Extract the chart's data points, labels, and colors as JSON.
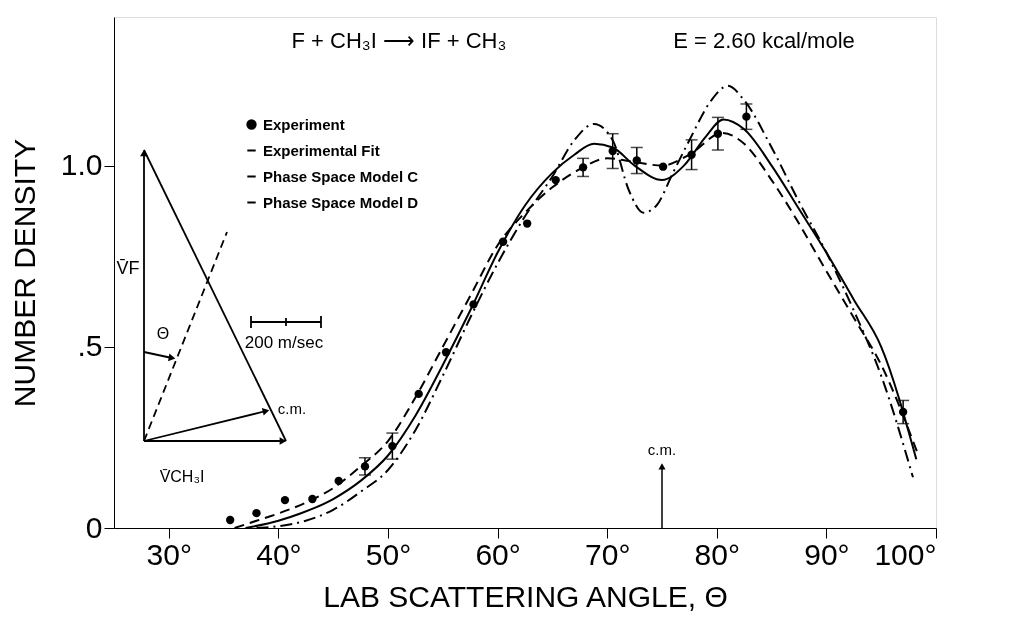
{
  "chart_data": {
    "type": "line",
    "xlabel": "LAB SCATTERING ANGLE, Θ",
    "ylabel": "NUMBER DENSITY",
    "xlim": [
      25,
      100
    ],
    "ylim": [
      0,
      1.41
    ],
    "xticks": [
      {
        "value": 30,
        "label": "30°"
      },
      {
        "value": 40,
        "label": "40°"
      },
      {
        "value": 50,
        "label": "50°"
      },
      {
        "value": 60,
        "label": "60°"
      },
      {
        "value": 70,
        "label": "70°"
      },
      {
        "value": 80,
        "label": "80°"
      },
      {
        "value": 90,
        "label": "90°"
      },
      {
        "value": 100,
        "label": "100°"
      }
    ],
    "yticks": [
      0,
      {
        "value": 0.5,
        "label": ".5"
      },
      {
        "value": 1.0,
        "label": "1.0"
      }
    ],
    "grid": false,
    "legend": "top left",
    "annotations": [
      "F + CH₃I ⟶ IF + CH₃",
      "E = 2.60 kcal/mole",
      "V̄F",
      "Θ",
      "200 m/sec",
      "c.m.",
      "V̄CH₃I",
      {
        "text": "c.m.",
        "x": 75,
        "y": 0.17
      }
    ],
    "series": [
      {
        "name": "Experiment",
        "type": "scatter",
        "color": "#000000",
        "marker": "circle",
        "x": [
          35.6,
          38.0,
          40.6,
          43.1,
          45.5,
          47.9,
          50.4,
          52.8,
          55.3,
          57.8,
          60.5,
          62.7,
          65.3,
          67.8,
          70.5,
          72.7,
          75.1,
          77.7,
          80.1,
          82.7,
          97.0
        ],
        "values": [
          0.022,
          0.041,
          0.077,
          0.08,
          0.13,
          0.17,
          0.226,
          0.37,
          0.485,
          0.617,
          0.79,
          0.84,
          0.96,
          0.995,
          1.04,
          1.014,
          0.997,
          1.03,
          1.088,
          1.135,
          0.32
        ],
        "errors": [
          null,
          null,
          null,
          null,
          null,
          0.024,
          0.036,
          null,
          null,
          null,
          null,
          null,
          null,
          0.025,
          0.048,
          0.036,
          null,
          0.041,
          0.045,
          0.035,
          0.032
        ]
      },
      {
        "name": "Experimental Fit",
        "color": "#000000",
        "line_style": "solid",
        "x": [
          37,
          40,
          42,
          45,
          47.5,
          50,
          52.5,
          55,
          57.5,
          60,
          62.5,
          65,
          67,
          68.8,
          70.5,
          72.5,
          75,
          77,
          79,
          80.6,
          82.5,
          85,
          87.5,
          90,
          92.5,
          95,
          98.2
        ],
        "values": [
          0,
          0.02,
          0.04,
          0.08,
          0.13,
          0.2,
          0.31,
          0.45,
          0.6,
          0.76,
          0.89,
          0.98,
          1.03,
          1.06,
          1.05,
          1.0,
          0.96,
          1.0,
          1.08,
          1.127,
          1.1,
          1.0,
          0.88,
          0.76,
          0.63,
          0.5,
          0.19
        ]
      },
      {
        "name": "Phase Space Model C",
        "color": "#000000",
        "line_style": "dashed",
        "x": [
          36,
          38,
          40,
          42.5,
          45,
          47.5,
          50,
          52.5,
          55,
          57.5,
          60,
          62.5,
          65,
          67.5,
          70,
          72.5,
          75,
          77.5,
          80.5,
          82.5,
          85,
          87.5,
          89.4,
          92.5,
          95,
          98.4
        ],
        "values": [
          0,
          0.02,
          0.04,
          0.07,
          0.11,
          0.17,
          0.24,
          0.36,
          0.5,
          0.64,
          0.78,
          0.87,
          0.94,
          0.99,
          1.02,
          1.01,
          1.0,
          1.03,
          1.09,
          1.06,
          0.96,
          0.84,
          0.74,
          0.58,
          0.45,
          0.2
        ]
      },
      {
        "name": "Phase Space Model D",
        "color": "#000000",
        "line_style": "dashdot",
        "x": [
          38,
          40,
          42.5,
          45,
          47.5,
          50,
          52.5,
          55,
          57.5,
          60,
          62.5,
          65,
          67,
          68.8,
          70.5,
          72,
          73.3,
          74.5,
          76,
          77.5,
          79.5,
          81,
          82.5,
          85,
          87.5,
          90,
          92.5,
          95,
          97.9
        ],
        "values": [
          0,
          0.005,
          0.02,
          0.05,
          0.1,
          0.16,
          0.27,
          0.42,
          0.58,
          0.73,
          0.86,
          0.97,
          1.07,
          1.115,
          1.07,
          0.93,
          0.87,
          0.89,
          0.98,
          1.07,
          1.18,
          1.22,
          1.18,
          1.05,
          0.9,
          0.76,
          0.6,
          0.42,
          0.14
        ]
      }
    ]
  }
}
